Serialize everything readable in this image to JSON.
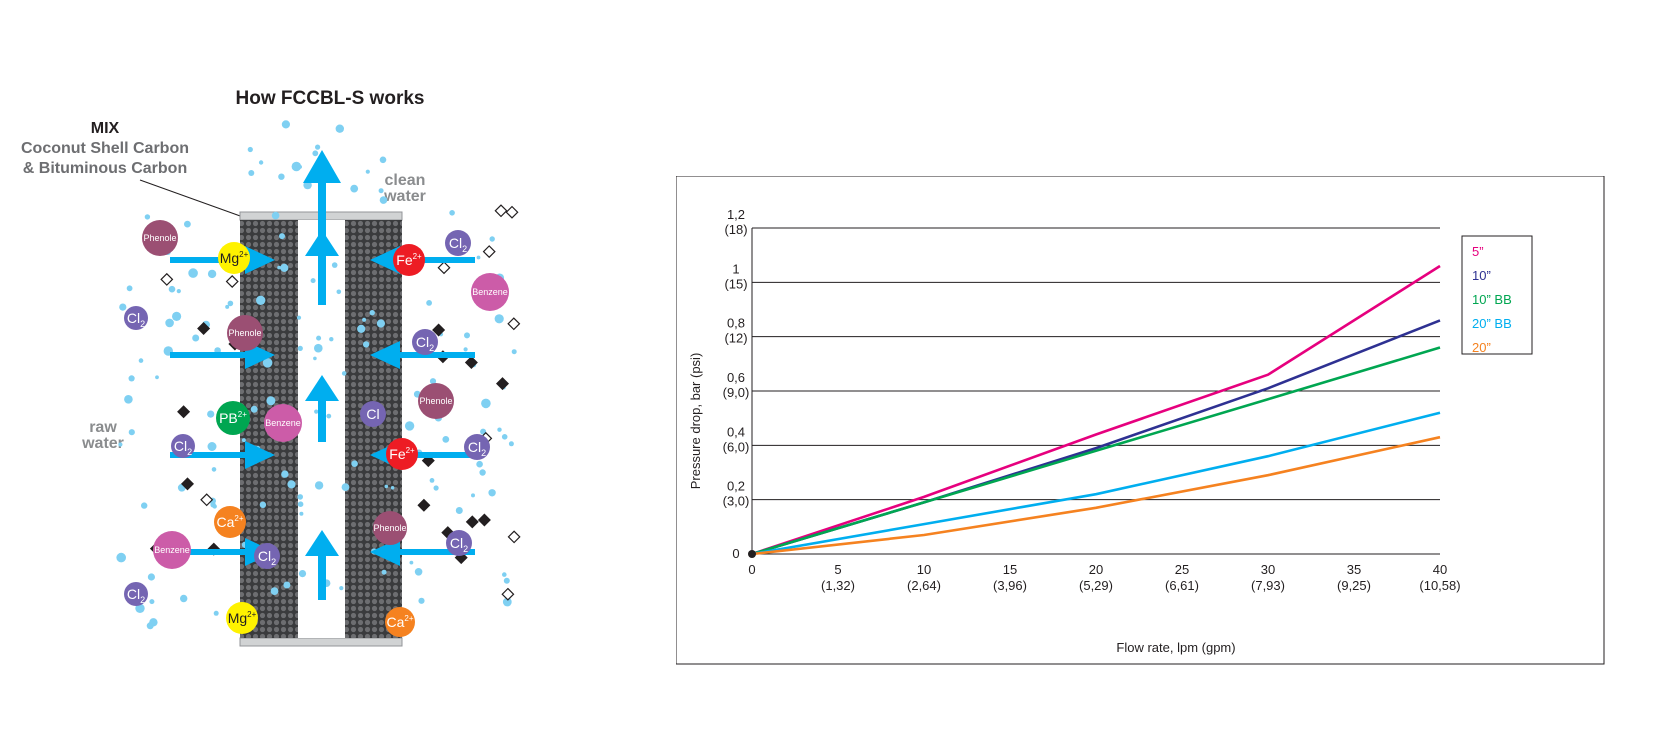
{
  "diagram": {
    "title": "How FCCBL-S works",
    "mix_title": "MIX",
    "mix_lines": [
      "Coconut Shell Carbon",
      "& Bituminous Carbon"
    ],
    "clean_water": [
      "clean",
      "water"
    ],
    "raw_water": [
      "raw",
      "water"
    ],
    "molecules": [
      {
        "label": "Phenole",
        "sup": "",
        "color": "#9b4f73",
        "kind": "phenole"
      },
      {
        "label": "Mg",
        "sup": "2+",
        "color": "#fff200",
        "kind": "ion-dark"
      },
      {
        "label": "Cl",
        "sub": "2",
        "color": "#7565b2",
        "kind": "cl"
      },
      {
        "label": "Phenole",
        "sup": "",
        "color": "#9b4f73",
        "kind": "phenole"
      },
      {
        "label": "PB",
        "sup": "2+",
        "color": "#00a651",
        "kind": "ion"
      },
      {
        "label": "Benzene",
        "sup": "",
        "color": "#cc5ca8",
        "kind": "benzene"
      },
      {
        "label": "Cl",
        "sub": "2",
        "color": "#7565b2",
        "kind": "cl"
      },
      {
        "label": "Ca",
        "sup": "2+",
        "color": "#f58220",
        "kind": "ion"
      },
      {
        "label": "Benzene",
        "sup": "",
        "color": "#cc5ca8",
        "kind": "benzene"
      },
      {
        "label": "Cl",
        "sub": "2",
        "color": "#7565b2",
        "kind": "cl"
      },
      {
        "label": "Cl",
        "sub": "2",
        "color": "#7565b2",
        "kind": "cl"
      },
      {
        "label": "Mg",
        "sup": "2+",
        "color": "#fff200",
        "kind": "ion-dark"
      },
      {
        "label": "Cl",
        "sub": "2",
        "color": "#7565b2",
        "kind": "cl"
      },
      {
        "label": "Fe",
        "sup": "2+",
        "color": "#ed1c24",
        "kind": "ion"
      },
      {
        "label": "Benzene",
        "sup": "",
        "color": "#cc5ca8",
        "kind": "benzene"
      },
      {
        "label": "Cl",
        "sub": "2",
        "color": "#7565b2",
        "kind": "cl"
      },
      {
        "label": "Phenole",
        "sup": "",
        "color": "#9b4f73",
        "kind": "phenole"
      },
      {
        "label": "Cl",
        "sub": "",
        "color": "#7565b2",
        "kind": "cl"
      },
      {
        "label": "Fe",
        "sup": "2+",
        "color": "#ed1c24",
        "kind": "ion"
      },
      {
        "label": "Cl",
        "sub": "2",
        "color": "#7565b2",
        "kind": "cl"
      },
      {
        "label": "Phenole",
        "sup": "",
        "color": "#9b4f73",
        "kind": "phenole"
      },
      {
        "label": "Cl",
        "sub": "2",
        "color": "#7565b2",
        "kind": "cl"
      },
      {
        "label": "Ca",
        "sup": "2+",
        "color": "#f58220",
        "kind": "ion"
      }
    ],
    "colors": {
      "arrow": "#00aeef",
      "bubble": "#7fd0f2",
      "cartridge": "#58595b"
    }
  },
  "chart_data": {
    "type": "line",
    "xlabel": "Flow rate, lpm (gpm)",
    "ylabel": "Pressure drop, bar (psi)",
    "xlim": [
      0,
      40
    ],
    "ylim": [
      0,
      1.2
    ],
    "x_ticks": [
      {
        "value": 0,
        "label": "0",
        "sub": ""
      },
      {
        "value": 5,
        "label": "5",
        "sub": "(1,32)"
      },
      {
        "value": 10,
        "label": "10",
        "sub": "(2,64)"
      },
      {
        "value": 15,
        "label": "15",
        "sub": "(3,96)"
      },
      {
        "value": 20,
        "label": "20",
        "sub": "(5,29)"
      },
      {
        "value": 25,
        "label": "25",
        "sub": "(6,61)"
      },
      {
        "value": 30,
        "label": "30",
        "sub": "(7,93)"
      },
      {
        "value": 35,
        "label": "35",
        "sub": "(9,25)"
      },
      {
        "value": 40,
        "label": "40",
        "sub": "(10,58)"
      }
    ],
    "y_ticks": [
      {
        "value": 0,
        "label": "0",
        "sub": ""
      },
      {
        "value": 0.2,
        "label": "0,2",
        "sub": "(3,0)"
      },
      {
        "value": 0.4,
        "label": "0,4",
        "sub": "(6,0)"
      },
      {
        "value": 0.6,
        "label": "0,6",
        "sub": "(9,0)"
      },
      {
        "value": 0.8,
        "label": "0,8",
        "sub": "(12)"
      },
      {
        "value": 1.0,
        "label": "1",
        "sub": "(15)"
      },
      {
        "value": 1.2,
        "label": "1,2",
        "sub": "(18)"
      }
    ],
    "grid": true,
    "legend": "top-right",
    "series": [
      {
        "name": "5”",
        "color": "#e6007e",
        "x": [
          0,
          10,
          20,
          30,
          40
        ],
        "y": [
          0,
          0.21,
          0.44,
          0.66,
          1.06
        ]
      },
      {
        "name": "10”",
        "color": "#2e3192",
        "x": [
          0,
          10,
          20,
          30,
          40
        ],
        "y": [
          0,
          0.19,
          0.39,
          0.61,
          0.86
        ]
      },
      {
        "name": "10” BB",
        "color": "#00a651",
        "x": [
          0,
          10,
          20,
          30,
          40
        ],
        "y": [
          0,
          0.19,
          0.38,
          0.57,
          0.76
        ]
      },
      {
        "name": "20” BB",
        "color": "#00aeef",
        "x": [
          0,
          10,
          20,
          30,
          40
        ],
        "y": [
          0,
          0.11,
          0.22,
          0.36,
          0.52
        ]
      },
      {
        "name": "20”",
        "color": "#f58220",
        "x": [
          0,
          10,
          20,
          30,
          40
        ],
        "y": [
          0,
          0.07,
          0.17,
          0.29,
          0.43
        ]
      }
    ]
  }
}
